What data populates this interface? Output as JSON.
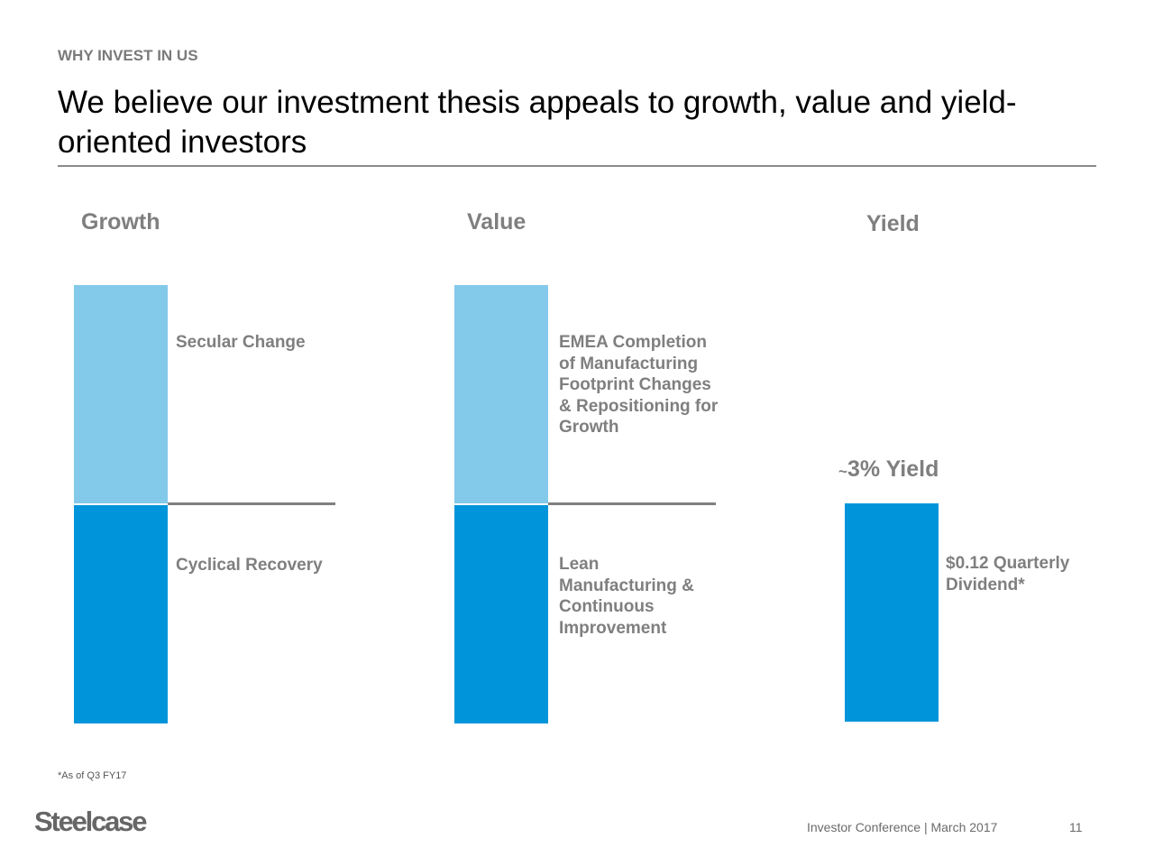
{
  "slide": {
    "kicker": "WHY INVEST IN US",
    "title": "We believe our investment thesis appeals to growth, value and yield-oriented investors"
  },
  "columns": {
    "growth": {
      "heading": "Growth",
      "upper_label": "Secular Change",
      "lower_label": "Cyclical Recovery"
    },
    "value": {
      "heading": "Value",
      "upper_label": "EMEA Completion\nof Manufacturing\nFootprint Changes\n& Repositioning for\nGrowth",
      "lower_label": "Lean\nManufacturing &\nContinuous\nImprovement"
    },
    "yield": {
      "heading": "Yield",
      "tilde": "~",
      "yield_value": "3% Yield",
      "bar_label": "$0.12 Quarterly\nDividend*"
    }
  },
  "footnote": "*As of Q3 FY17",
  "footer": {
    "logo": "Steelcase",
    "event": "Investor Conference | March 2017",
    "page_number": "11"
  },
  "colors": {
    "light_blue": "#83c9ea",
    "dark_blue": "#0095da",
    "gray_text": "#7f7f7f"
  }
}
